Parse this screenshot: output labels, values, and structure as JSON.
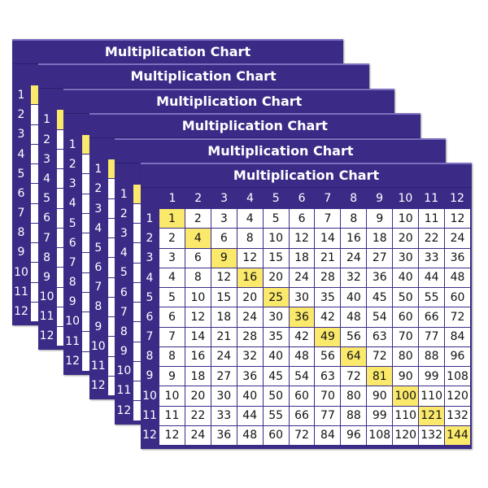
{
  "title": "Multiplication Chart",
  "card_count": 6,
  "colors": {
    "background": "#3b2b87",
    "highlight": "#fbe96c",
    "cell": "#ffffff"
  },
  "column_headers": [
    1,
    2,
    3,
    4,
    5,
    6,
    7,
    8,
    9,
    10,
    11,
    12
  ],
  "row_headers": [
    1,
    2,
    3,
    4,
    5,
    6,
    7,
    8,
    9,
    10,
    11,
    12
  ],
  "rows": [
    [
      1,
      2,
      3,
      4,
      5,
      6,
      7,
      8,
      9,
      10,
      11,
      12
    ],
    [
      2,
      4,
      6,
      8,
      10,
      12,
      14,
      16,
      18,
      20,
      22,
      24
    ],
    [
      3,
      6,
      9,
      12,
      15,
      18,
      21,
      24,
      27,
      30,
      33,
      36
    ],
    [
      4,
      8,
      12,
      16,
      20,
      24,
      28,
      32,
      36,
      40,
      44,
      48
    ],
    [
      5,
      10,
      15,
      20,
      25,
      30,
      35,
      40,
      45,
      50,
      55,
      60
    ],
    [
      6,
      12,
      18,
      24,
      30,
      36,
      42,
      48,
      54,
      60,
      66,
      72
    ],
    [
      7,
      14,
      21,
      28,
      35,
      42,
      49,
      56,
      63,
      70,
      77,
      84
    ],
    [
      8,
      16,
      24,
      32,
      40,
      48,
      56,
      64,
      72,
      80,
      88,
      96
    ],
    [
      9,
      18,
      27,
      36,
      45,
      54,
      63,
      72,
      81,
      90,
      99,
      108
    ],
    [
      10,
      20,
      30,
      40,
      50,
      60,
      70,
      80,
      90,
      100,
      110,
      120
    ],
    [
      11,
      22,
      33,
      44,
      55,
      66,
      77,
      88,
      99,
      110,
      121,
      132
    ],
    [
      12,
      24,
      36,
      48,
      60,
      72,
      84,
      96,
      108,
      120,
      132,
      144
    ]
  ]
}
